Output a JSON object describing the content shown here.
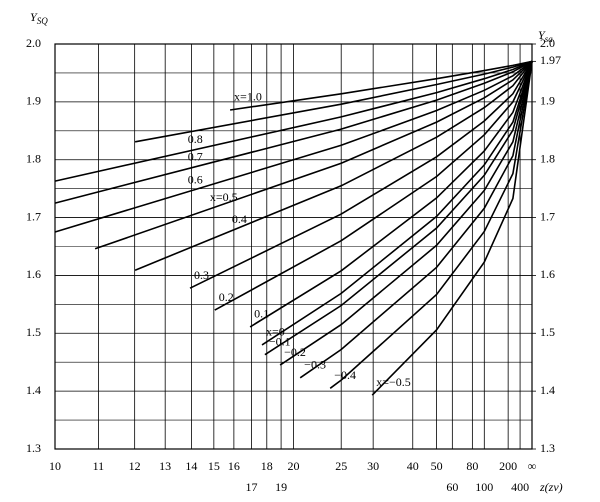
{
  "chart_data": {
    "type": "line",
    "ylabel": "Y",
    "ylabel_sub": "SQ",
    "y2label": "Y",
    "y2label_sub": "sa",
    "xlabel": "z(zv)",
    "color": "#000000",
    "grid": true,
    "xlim": [
      0.1,
      0
    ],
    "xticks": [
      {
        "value": 0.1,
        "label": "10"
      },
      {
        "value": 0.0909,
        "label": "11"
      },
      {
        "value": 0.0833,
        "label": "12"
      },
      {
        "value": 0.0769,
        "label": "13"
      },
      {
        "value": 0.0714,
        "label": "14"
      },
      {
        "value": 0.0667,
        "label": "15"
      },
      {
        "value": 0.0625,
        "label": "16"
      },
      {
        "value": 0.0588,
        "label": "17"
      },
      {
        "value": 0.0556,
        "label": "18"
      },
      {
        "value": 0.0526,
        "label": "19"
      },
      {
        "value": 0.05,
        "label": "20"
      },
      {
        "value": 0.04,
        "label": "25"
      },
      {
        "value": 0.0333,
        "label": "30"
      },
      {
        "value": 0.025,
        "label": "40"
      },
      {
        "value": 0.02,
        "label": "50"
      },
      {
        "value": 0.0167,
        "label": "60"
      },
      {
        "value": 0.0125,
        "label": "80"
      },
      {
        "value": 0.01,
        "label": "100"
      },
      {
        "value": 0.005,
        "label": "200"
      },
      {
        "value": 0.0025,
        "label": "400"
      },
      {
        "value": 0,
        "label": "∞"
      }
    ],
    "ylim": [
      1.3,
      2.0
    ],
    "yticks": [
      {
        "value": 2,
        "label": "2.0"
      },
      1.9,
      1.8,
      1.7,
      1.6,
      1.5,
      1.4,
      1.3
    ],
    "minor_yticks": [
      1.95,
      1.85,
      1.75,
      1.65,
      1.55,
      1.45,
      1.35
    ],
    "y2lim": [
      1.3,
      2.0
    ],
    "y2ticks": [
      {
        "value": 2,
        "label": "2.0"
      },
      1.97,
      1.9,
      1.8,
      1.7,
      1.6,
      1.5,
      1.4,
      1.3
    ],
    "series": [
      {
        "name": "x=1.0",
        "x": [
          0.0633,
          0.04,
          0.02,
          0.01,
          0.004,
          0
        ],
        "values": [
          1.886,
          1.914,
          1.94,
          1.954,
          1.963,
          1.97
        ]
      },
      {
        "x": [
          0.0832,
          0.04,
          0.02,
          0.01,
          0.004,
          0
        ],
        "values": [
          1.831,
          1.896,
          1.93,
          1.948,
          1.96,
          1.97
        ]
      },
      {
        "name": "0.8",
        "x": [
          0.1,
          0.04,
          0.02,
          0.01,
          0.004,
          0
        ],
        "values": [
          1.763,
          1.874,
          1.916,
          1.94,
          1.956,
          1.97
        ]
      },
      {
        "name": "0.7",
        "x": [
          0.1,
          0.04,
          0.02,
          0.01,
          0.004,
          0
        ],
        "values": [
          1.725,
          1.853,
          1.903,
          1.932,
          1.952,
          1.97
        ]
      },
      {
        "name": "0.6",
        "x": [
          0.1,
          0.04,
          0.02,
          0.01,
          0.004,
          0
        ],
        "values": [
          1.675,
          1.825,
          1.885,
          1.92,
          1.945,
          1.97
        ]
      },
      {
        "name": "x=0.5",
        "x": [
          0.0916,
          0.04,
          0.02,
          0.01,
          0.004,
          0
        ],
        "values": [
          1.646,
          1.794,
          1.865,
          1.907,
          1.938,
          1.97
        ]
      },
      {
        "name": "0.4",
        "x": [
          0.0832,
          0.04,
          0.02,
          0.01,
          0.004,
          0
        ],
        "values": [
          1.609,
          1.755,
          1.839,
          1.89,
          1.928,
          1.97
        ]
      },
      {
        "name": "0.3",
        "x": [
          0.0717,
          0.04,
          0.02,
          0.01,
          0.004,
          0
        ],
        "values": [
          1.578,
          1.706,
          1.805,
          1.867,
          1.914,
          1.97
        ]
      },
      {
        "name": "0.2",
        "x": [
          0.0665,
          0.04,
          0.02,
          0.01,
          0.004,
          0
        ],
        "values": [
          1.54,
          1.66,
          1.771,
          1.843,
          1.9,
          1.97
        ]
      },
      {
        "name": "0.1",
        "x": [
          0.0591,
          0.04,
          0.02,
          0.01,
          0.004,
          0
        ],
        "values": [
          1.511,
          1.608,
          1.734,
          1.815,
          1.882,
          1.97
        ]
      },
      {
        "name": "x=0",
        "x": [
          0.0566,
          0.04,
          0.02,
          0.01,
          0.004,
          0
        ],
        "values": [
          1.48,
          1.569,
          1.702,
          1.791,
          1.865,
          1.97
        ]
      },
      {
        "name": "−0.1",
        "x": [
          0.056,
          0.04,
          0.02,
          0.01,
          0.004,
          0
        ],
        "values": [
          1.463,
          1.548,
          1.682,
          1.773,
          1.851,
          1.97
        ]
      },
      {
        "name": "−0.2",
        "x": [
          0.0528,
          0.04,
          0.02,
          0.01,
          0.004,
          0
        ],
        "values": [
          1.445,
          1.515,
          1.652,
          1.747,
          1.831,
          1.97
        ]
      },
      {
        "name": "−0.3",
        "x": [
          0.0486,
          0.04,
          0.02,
          0.01,
          0.004,
          0
        ],
        "values": [
          1.423,
          1.472,
          1.614,
          1.716,
          1.807,
          1.97
        ]
      },
      {
        "name": "−0.4",
        "x": [
          0.0423,
          0.04,
          0.02,
          0.01,
          0.004,
          0
        ],
        "values": [
          1.405,
          1.419,
          1.567,
          1.676,
          1.776,
          1.97
        ]
      },
      {
        "name": "x=−0.5",
        "x": [
          0.0335,
          0.02,
          0.01,
          0.004,
          0
        ],
        "values": [
          1.393,
          1.506,
          1.623,
          1.733,
          1.97
        ]
      }
    ]
  }
}
